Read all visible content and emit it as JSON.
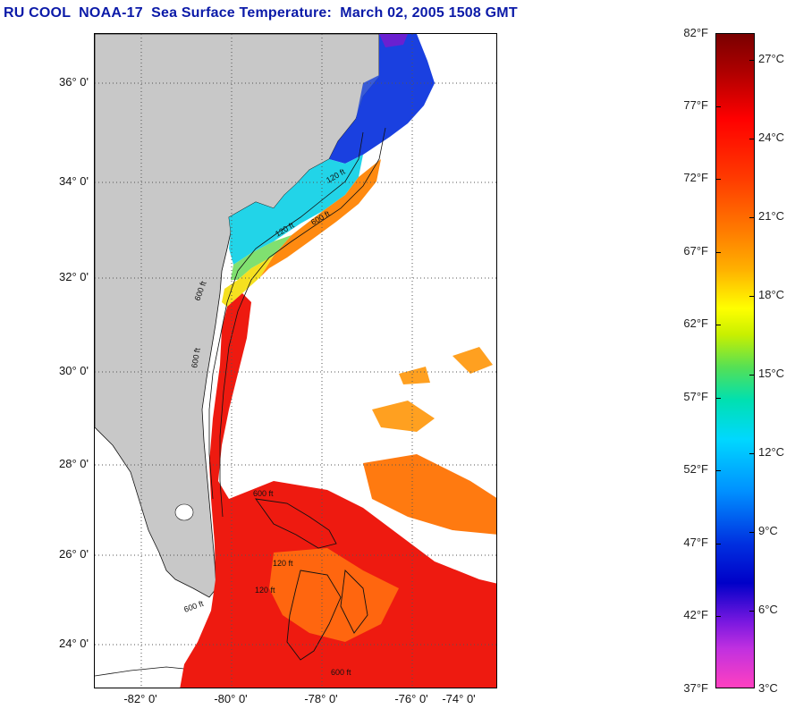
{
  "title": "RU COOL  NOAA-17  Sea Surface Temperature:  March 02, 2005 1508 GMT",
  "map": {
    "lat_labels": [
      "36° 0'",
      "34° 0'",
      "32° 0'",
      "30° 0'",
      "28° 0'",
      "26° 0'",
      "24° 0'"
    ],
    "lon_labels": [
      "-82° 0'",
      "-80° 0'",
      "-78° 0'",
      "-76° 0'",
      "-74° 0'"
    ],
    "contour_labels": [
      "120 ft",
      "600 ft",
      "120 ft",
      "600 ft",
      "600 ft",
      "600 ft",
      "120 ft",
      "600 ft",
      "120 ft",
      "600 ft"
    ],
    "colors": {
      "land": "#c8c8c8",
      "ocean_nodata": "#ffffff",
      "grid": "#555555"
    }
  },
  "colorbar": {
    "fahrenheit_labels": [
      "82°F",
      "77°F",
      "72°F",
      "67°F",
      "62°F",
      "57°F",
      "52°F",
      "47°F",
      "42°F",
      "37°F"
    ],
    "celsius_labels": [
      "27°C",
      "24°C",
      "21°C",
      "18°C",
      "15°C",
      "12°C",
      "9°C",
      "6°C",
      "3°C"
    ]
  }
}
